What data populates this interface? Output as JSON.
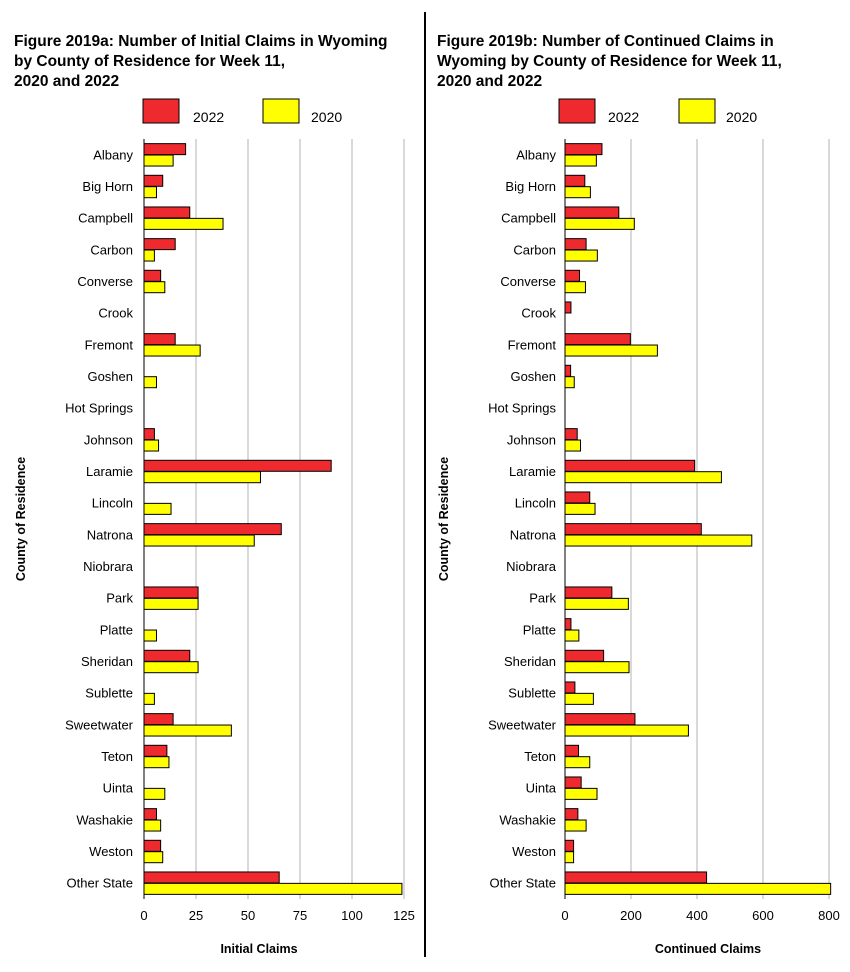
{
  "charts": [
    {
      "id": "a",
      "title_lines": [
        "Figure 2019a: Number of Initial Claims in Wyoming",
        "by County of Residence for Week 11,",
        "2020 and 2022"
      ],
      "legend": [
        "2022",
        "2020"
      ],
      "xlabel": "Initial Claims",
      "ylabel": "County of Residence",
      "ticks": [
        "0",
        "25",
        "50",
        "75",
        "100",
        "125"
      ]
    },
    {
      "id": "b",
      "title_lines": [
        "Figure 2019b: Number of Continued Claims in",
        "Wyoming by County of Residence for Week 11,",
        "2020 and 2022"
      ],
      "legend": [
        "2022",
        "2020"
      ],
      "xlabel": "Continued Claims",
      "ylabel": "County of Residence",
      "ticks": [
        "0",
        "200",
        "400",
        "600",
        "800"
      ]
    }
  ],
  "colors": {
    "series_2022": "#ee2a2f",
    "series_2020": "#ffff00",
    "grid": "#b3b3b3"
  },
  "chart_data": [
    {
      "type": "bar",
      "orientation": "horizontal",
      "title": "Figure 2019a: Number of Initial Claims in Wyoming by County of Residence for Week 11, 2020 and 2022",
      "xlabel": "Initial Claims",
      "ylabel": "County of Residence",
      "xlim": [
        0,
        125
      ],
      "grid": true,
      "legend_position": "top",
      "categories": [
        "Albany",
        "Big Horn",
        "Campbell",
        "Carbon",
        "Converse",
        "Crook",
        "Fremont",
        "Goshen",
        "Hot Springs",
        "Johnson",
        "Laramie",
        "Lincoln",
        "Natrona",
        "Niobrara",
        "Park",
        "Platte",
        "Sheridan",
        "Sublette",
        "Sweetwater",
        "Teton",
        "Uinta",
        "Washakie",
        "Weston",
        "Other State"
      ],
      "series": [
        {
          "name": "2022",
          "values": [
            20,
            9,
            22,
            15,
            8,
            0,
            15,
            0,
            0,
            5,
            90,
            0,
            66,
            0,
            26,
            0,
            22,
            0,
            14,
            11,
            0,
            6,
            8,
            65
          ]
        },
        {
          "name": "2020",
          "values": [
            14,
            6,
            38,
            5,
            10,
            0,
            27,
            6,
            0,
            7,
            56,
            13,
            53,
            0,
            26,
            6,
            26,
            5,
            42,
            12,
            10,
            8,
            9,
            124
          ]
        }
      ]
    },
    {
      "type": "bar",
      "orientation": "horizontal",
      "title": "Figure 2019b: Number of Continued Claims in Wyoming by County of Residence for Week 11, 2020 and 2022",
      "xlabel": "Continued Claims",
      "ylabel": "County of Residence",
      "xlim": [
        0,
        800
      ],
      "grid": true,
      "legend_position": "top",
      "categories": [
        "Albany",
        "Big Horn",
        "Campbell",
        "Carbon",
        "Converse",
        "Crook",
        "Fremont",
        "Goshen",
        "Hot Springs",
        "Johnson",
        "Laramie",
        "Lincoln",
        "Natrona",
        "Niobrara",
        "Park",
        "Platte",
        "Sheridan",
        "Sublette",
        "Sweetwater",
        "Teton",
        "Uinta",
        "Washakie",
        "Weston",
        "Other State"
      ],
      "series": [
        {
          "name": "2022",
          "values": [
            112,
            60,
            163,
            64,
            44,
            18,
            198,
            17,
            0,
            37,
            393,
            75,
            413,
            0,
            142,
            18,
            117,
            30,
            212,
            41,
            49,
            39,
            26,
            429
          ]
        },
        {
          "name": "2020",
          "values": [
            95,
            77,
            210,
            98,
            62,
            0,
            280,
            28,
            0,
            47,
            474,
            91,
            566,
            0,
            192,
            42,
            194,
            86,
            374,
            75,
            97,
            64,
            26,
            805
          ]
        }
      ]
    }
  ]
}
